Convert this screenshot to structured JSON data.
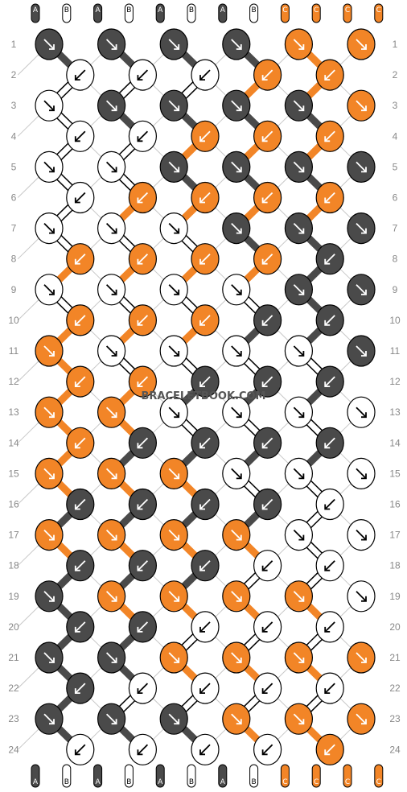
{
  "watermark": "BRACELETBOOK.COM",
  "colors": {
    "A": "#4a4a4a",
    "B": "#ffffff",
    "C": "#f28527",
    "outline": "#000000",
    "guide": "#c8c8c8"
  },
  "strings_top": [
    "A",
    "B",
    "A",
    "B",
    "A",
    "B",
    "A",
    "B",
    "C",
    "C",
    "C",
    "C"
  ],
  "strings_bottom": [
    "A",
    "B",
    "A",
    "B",
    "A",
    "B",
    "A",
    "B",
    "C",
    "C",
    "C",
    "C"
  ],
  "row_numbers": [
    "1",
    "2",
    "3",
    "4",
    "5",
    "6",
    "7",
    "8",
    "9",
    "10",
    "11",
    "12",
    "13",
    "14",
    "15",
    "16",
    "17",
    "18",
    "19",
    "20",
    "21",
    "22",
    "23",
    "24"
  ],
  "knot_icon": "knot-arrow-icon",
  "knots": [
    [
      "A>",
      "A>",
      "A>",
      "A>",
      "C>",
      "C>"
    ],
    [
      "B<",
      "B<",
      "B<",
      "C<",
      "C<"
    ],
    [
      "B>",
      "A>",
      "A>",
      "A>",
      "A>",
      "C>"
    ],
    [
      "B<",
      "B<",
      "C<",
      "C<",
      "C<"
    ],
    [
      "B>",
      "B>",
      "A>",
      "A>",
      "A>",
      "A>"
    ],
    [
      "B<",
      "C<",
      "C<",
      "C<",
      "C<"
    ],
    [
      "B>",
      "B>",
      "B>",
      "A>",
      "A>",
      "A>"
    ],
    [
      "C<",
      "C<",
      "C<",
      "C<",
      "A<"
    ],
    [
      "B>",
      "B>",
      "B>",
      "B>",
      "A>",
      "A>"
    ],
    [
      "C<",
      "C<",
      "C<",
      "A<",
      "A<"
    ],
    [
      "C>",
      "B>",
      "B>",
      "B>",
      "B>",
      "A>"
    ],
    [
      "C<",
      "C<",
      "A<",
      "A<",
      "A<"
    ],
    [
      "C>",
      "C>",
      "B>",
      "B>",
      "B>",
      "B>"
    ],
    [
      "C<",
      "A<",
      "A<",
      "A<",
      "A<"
    ],
    [
      "C>",
      "C>",
      "C>",
      "B>",
      "B>",
      "B>"
    ],
    [
      "A<",
      "A<",
      "A<",
      "A<",
      "B<"
    ],
    [
      "C>",
      "C>",
      "C>",
      "C>",
      "B>",
      "B>"
    ],
    [
      "A<",
      "A<",
      "A<",
      "B<",
      "B<"
    ],
    [
      "A>",
      "C>",
      "C>",
      "C>",
      "C>",
      "B>"
    ],
    [
      "A<",
      "A<",
      "B<",
      "B<",
      "B<"
    ],
    [
      "A>",
      "A>",
      "C>",
      "C>",
      "C>",
      "C>"
    ],
    [
      "A<",
      "B<",
      "B<",
      "B<",
      "B<"
    ],
    [
      "A>",
      "A>",
      "A>",
      "C>",
      "C>",
      "C>"
    ],
    [
      "B<",
      "B<",
      "B<",
      "B<",
      "C<"
    ]
  ]
}
